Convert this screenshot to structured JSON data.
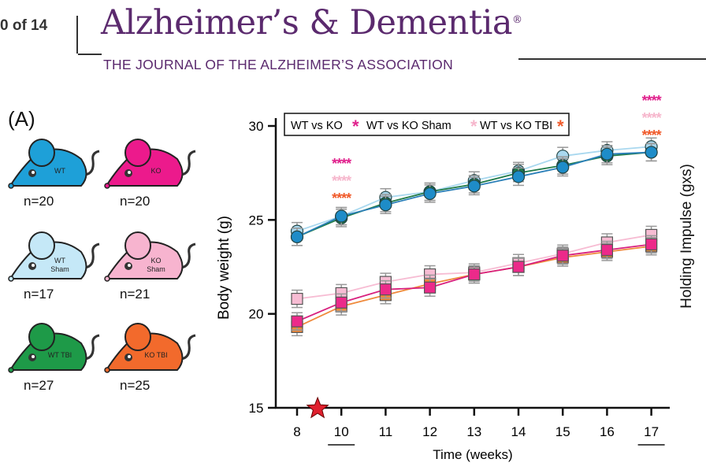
{
  "header": {
    "page": "0 of 14",
    "journal_title": "Alzheimer’s & Dementia",
    "registered": "®",
    "journal_subtitle": "THE JOURNAL OF THE ALZHEIMER’S ASSOCIATION"
  },
  "panel_label": "(A)",
  "groups": [
    {
      "label": "WT",
      "label2": "",
      "n": "n=20",
      "color": "#1ea0d8"
    },
    {
      "label": "KO",
      "label2": "",
      "n": "n=20",
      "color": "#ec1a8c"
    },
    {
      "label": "WT",
      "label2": "Sham",
      "n": "n=17",
      "color": "#c5e8f7"
    },
    {
      "label": "KO",
      "label2": "Sham",
      "n": "n=21",
      "color": "#f7b4cf"
    },
    {
      "label": "WT TBI",
      "label2": "",
      "n": "n=27",
      "color": "#1e9a48"
    },
    {
      "label": "KO TBI",
      "label2": "",
      "n": "n=25",
      "color": "#f26a2c"
    }
  ],
  "right_label": "Holding  Impulse (gxs)",
  "chart_data": {
    "type": "line",
    "xlabel": "Time (weeks)",
    "ylabel": "Body weight (g)",
    "categories": [
      "8",
      "10",
      "11",
      "12",
      "13",
      "14",
      "15",
      "16",
      "17"
    ],
    "underlined_ticks": [
      "10",
      "17"
    ],
    "yticks": [
      "15",
      "20",
      "25",
      "30"
    ],
    "ylim": [
      15,
      30
    ],
    "legend": [
      {
        "label": "WT vs KO",
        "star_color": "#e0208c"
      },
      {
        "label": "WT vs KO Sham",
        "star_color": "#f6b6cc"
      },
      {
        "label": "WT vs KO TBI",
        "star_color": "#f05a2a"
      }
    ],
    "legend_position": "top-left",
    "significance": {
      "weeks": [
        "10",
        "17"
      ],
      "text": "****"
    },
    "injury_marker": {
      "week_between": [
        "8",
        "10"
      ],
      "symbol": "star",
      "color": "#e0202e"
    },
    "series": [
      {
        "name": "WT Sham",
        "marker": "circle",
        "color": "#a9d8ef",
        "line": "#a9d8ef",
        "values": [
          24.4,
          25.2,
          26.2,
          26.5,
          27.1,
          27.6,
          28.4,
          28.7,
          28.9
        ]
      },
      {
        "name": "WT TBI",
        "marker": "circle",
        "color": "#1e7a48",
        "line": "#1e7a48",
        "values": [
          24.1,
          25.1,
          25.9,
          26.5,
          26.9,
          27.5,
          27.9,
          28.4,
          28.6
        ]
      },
      {
        "name": "WT",
        "marker": "circle",
        "color": "#1e8cc8",
        "line": "#2a7fb8",
        "values": [
          24.1,
          25.2,
          25.8,
          26.4,
          26.8,
          27.3,
          27.8,
          28.5,
          28.6
        ]
      },
      {
        "name": "KO Sham",
        "marker": "square",
        "color": "#f7bcd3",
        "line": "#f7bcd3",
        "values": [
          20.8,
          21.1,
          21.7,
          22.1,
          22.2,
          22.7,
          23.2,
          23.8,
          24.2
        ]
      },
      {
        "name": "KO TBI",
        "marker": "square",
        "color": "#ef8a3c",
        "line": "#ef8a3c",
        "values": [
          19.3,
          20.4,
          21.0,
          21.6,
          22.1,
          22.5,
          23.0,
          23.3,
          23.6
        ]
      },
      {
        "name": "KO",
        "marker": "square",
        "color": "#ec2a8a",
        "line": "#d8207e",
        "values": [
          19.6,
          20.6,
          21.3,
          21.4,
          22.1,
          22.5,
          23.1,
          23.4,
          23.7
        ]
      }
    ]
  }
}
